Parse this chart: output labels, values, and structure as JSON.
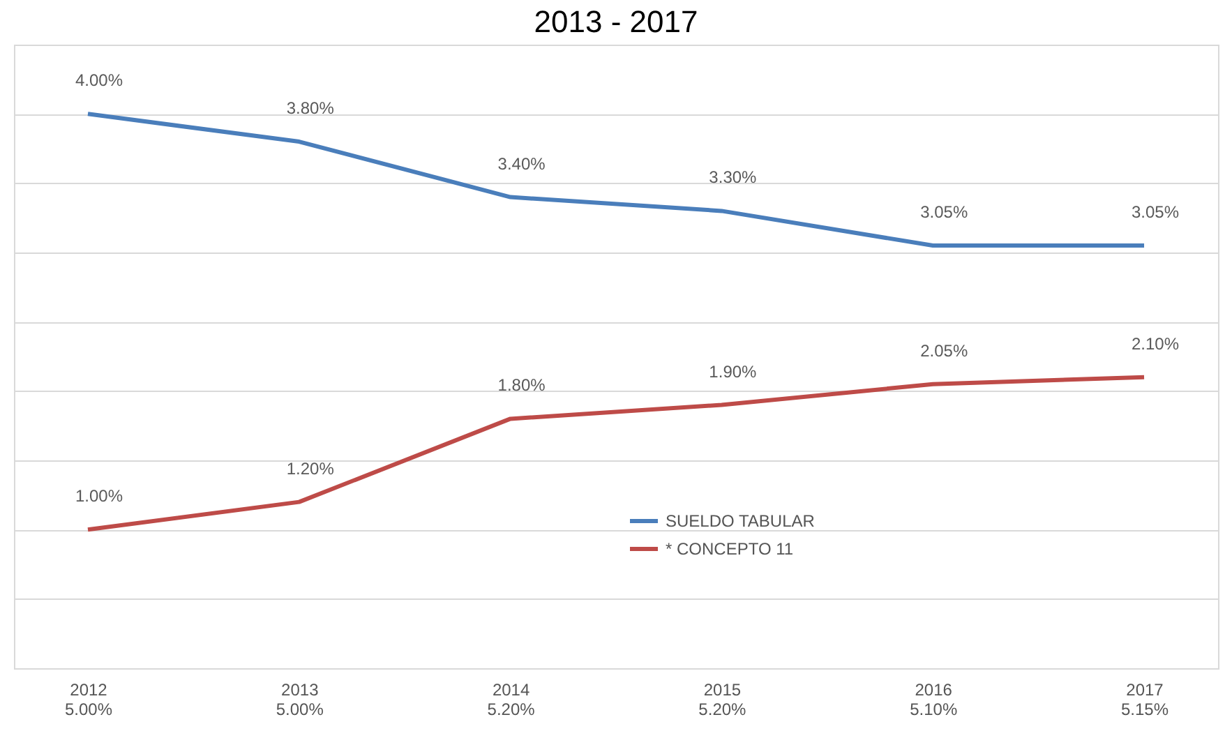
{
  "chart_data": {
    "type": "line",
    "title": "2013 - 2017",
    "categories": [
      "2012\n5.00%",
      "2013\n5.00%",
      "2014\n5.20%",
      "2015\n5.20%",
      "2016\n5.10%",
      "2017\n5.15%"
    ],
    "series": [
      {
        "name": "SUELDO TABULAR",
        "color": "#4a7ebb",
        "values": [
          4.0,
          3.8,
          3.4,
          3.3,
          3.05,
          3.05
        ],
        "value_labels": [
          "4.00%",
          "3.80%",
          "3.40%",
          "3.30%",
          "3.05%",
          "3.05%"
        ]
      },
      {
        "name": "* CONCEPTO 11",
        "color": "#be4b48",
        "values": [
          1.0,
          1.2,
          1.8,
          1.9,
          2.05,
          2.1
        ],
        "value_labels": [
          "1.00%",
          "1.20%",
          "1.80%",
          "1.90%",
          "2.05%",
          "2.10%"
        ]
      }
    ],
    "ylim": [
      0,
      4.5
    ],
    "yticks": [
      {
        "value": 0,
        "label": null
      },
      {
        "value": 0.5,
        "label": null
      },
      {
        "value": 1,
        "label": null
      },
      {
        "value": 1.5,
        "label": null
      },
      {
        "value": 2,
        "label": null
      },
      {
        "value": 2.5,
        "label": null
      },
      {
        "value": 3,
        "label": null
      },
      {
        "value": 3.5,
        "label": null
      },
      {
        "value": 4,
        "label": null
      },
      {
        "value": 4.5,
        "label": null
      }
    ],
    "grid": "y",
    "legend": "bottom",
    "tick_labels": "x",
    "marker": "none",
    "line_style": "solid"
  }
}
